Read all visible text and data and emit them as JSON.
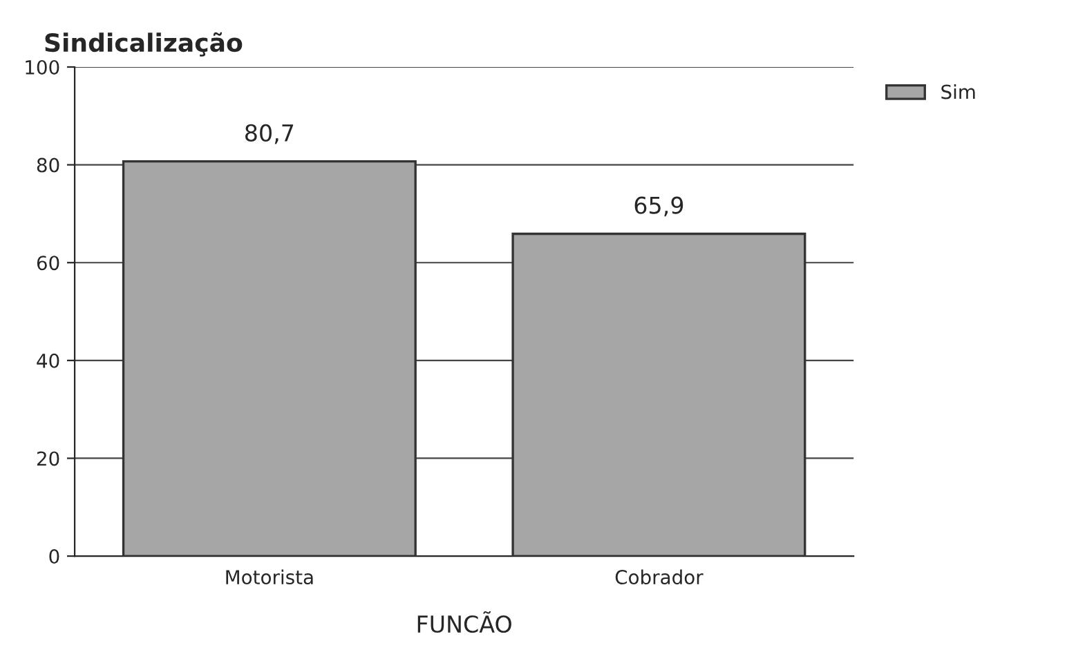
{
  "chart_data": {
    "type": "bar",
    "title": "Sindicalização",
    "xlabel": "FUNCÃO",
    "categories": [
      "Motorista",
      "Cobrador"
    ],
    "series": [
      {
        "name": "Sim",
        "color": "#a6a6a6",
        "values": [
          80.7,
          65.9
        ],
        "value_labels": [
          "80,7",
          "65,9"
        ]
      }
    ],
    "ylim": [
      0,
      100
    ],
    "yticks": [
      0,
      20,
      40,
      60,
      80,
      100
    ],
    "grid": "y",
    "legend": "top right"
  }
}
